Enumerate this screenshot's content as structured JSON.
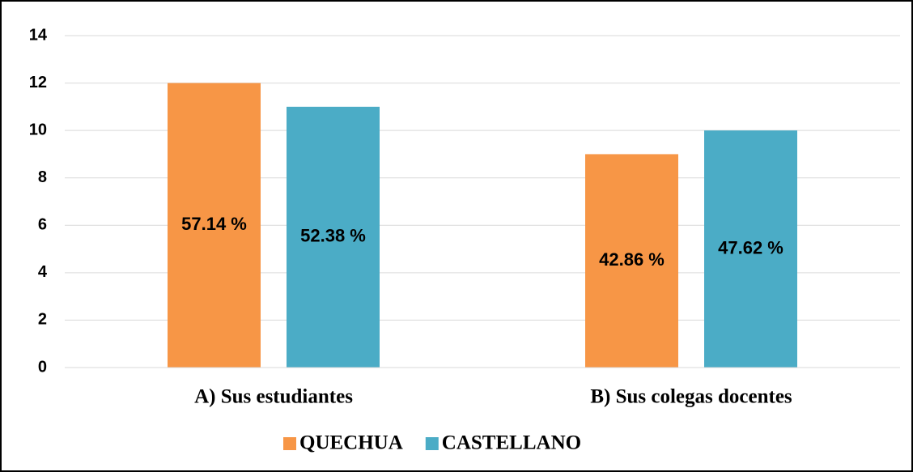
{
  "chart_data": {
    "type": "bar",
    "categories": [
      "A) Sus estudiantes",
      "B) Sus colegas docentes"
    ],
    "series": [
      {
        "name": "QUECHUA",
        "color": "#f79646",
        "values": [
          12,
          9
        ],
        "percent_labels": [
          "57.14 %",
          "42.86 %"
        ]
      },
      {
        "name": "CASTELLANO",
        "color": "#4bacc6",
        "values": [
          11,
          10
        ],
        "percent_labels": [
          "52.38 %",
          "47.62 %"
        ]
      }
    ],
    "ylim": [
      0,
      14
    ],
    "yticks": [
      0,
      2,
      4,
      6,
      8,
      10,
      12,
      14
    ],
    "grid": true,
    "legend": "bottom"
  }
}
